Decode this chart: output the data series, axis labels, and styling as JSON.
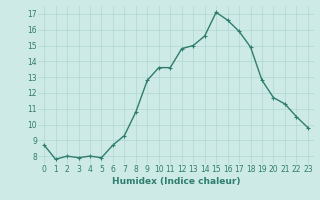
{
  "x": [
    0,
    1,
    2,
    3,
    4,
    5,
    6,
    7,
    8,
    9,
    10,
    11,
    12,
    13,
    14,
    15,
    16,
    17,
    18,
    19,
    20,
    21,
    22,
    23
  ],
  "y": [
    8.7,
    7.8,
    8.0,
    7.9,
    8.0,
    7.9,
    8.7,
    9.3,
    10.8,
    12.8,
    13.6,
    13.6,
    14.8,
    15.0,
    15.6,
    17.1,
    16.6,
    15.9,
    14.9,
    12.8,
    11.7,
    11.3,
    10.5,
    9.8
  ],
  "xlabel": "Humidex (Indice chaleur)",
  "line_color": "#2e7d6e",
  "marker": "+",
  "bg_color": "#cdeae6",
  "grid_color": "#b0d8d4",
  "tick_color": "#2e7d6e",
  "ylim": [
    7.5,
    17.5
  ],
  "xlim": [
    -0.5,
    23.5
  ],
  "yticks": [
    8,
    9,
    10,
    11,
    12,
    13,
    14,
    15,
    16,
    17
  ],
  "xticks": [
    0,
    1,
    2,
    3,
    4,
    5,
    6,
    7,
    8,
    9,
    10,
    11,
    12,
    13,
    14,
    15,
    16,
    17,
    18,
    19,
    20,
    21,
    22,
    23
  ],
  "xlabel_fontsize": 6.5,
  "tick_fontsize": 5.5,
  "linewidth": 1.0,
  "markersize": 3,
  "markeredgewidth": 0.8
}
